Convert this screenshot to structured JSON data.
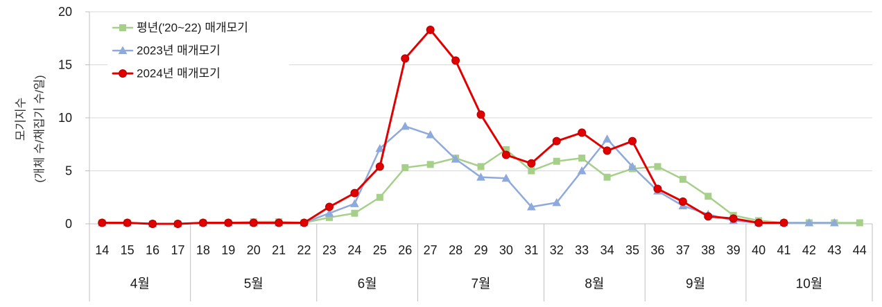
{
  "chart_data": {
    "type": "line",
    "categories": [
      "14",
      "15",
      "16",
      "17",
      "18",
      "19",
      "20",
      "21",
      "22",
      "23",
      "24",
      "25",
      "26",
      "27",
      "28",
      "29",
      "30",
      "31",
      "32",
      "33",
      "34",
      "35",
      "36",
      "37",
      "38",
      "39",
      "40",
      "41",
      "42",
      "43",
      "44"
    ],
    "groups": [
      {
        "label": "4월",
        "start": "14",
        "end": "17"
      },
      {
        "label": "5월",
        "start": "18",
        "end": "22"
      },
      {
        "label": "6월",
        "start": "23",
        "end": "26"
      },
      {
        "label": "7월",
        "start": "27",
        "end": "31"
      },
      {
        "label": "8월",
        "start": "32",
        "end": "35"
      },
      {
        "label": "9월",
        "start": "36",
        "end": "39"
      },
      {
        "label": "10월",
        "start": "40",
        "end": "44"
      }
    ],
    "series": [
      {
        "name": "평년('20~22) 매개모기",
        "color": "#A6D08A",
        "marker": "square",
        "values": [
          0.1,
          0.1,
          0.0,
          0.0,
          0.1,
          0.1,
          0.2,
          0.2,
          0.1,
          0.6,
          1.0,
          2.5,
          5.3,
          5.6,
          6.2,
          5.4,
          7.0,
          5.0,
          5.9,
          6.2,
          4.4,
          5.2,
          5.4,
          4.2,
          2.6,
          0.8,
          0.3,
          0.1,
          0.1,
          0.1,
          0.1
        ]
      },
      {
        "name": "2023년 매개모기",
        "color": "#8EA9DB",
        "marker": "triangle",
        "values": [
          0.1,
          0.1,
          0.0,
          0.0,
          0.1,
          0.1,
          0.1,
          0.1,
          0.1,
          1.0,
          1.9,
          7.1,
          9.2,
          8.4,
          6.1,
          4.4,
          4.3,
          1.6,
          2.0,
          5.0,
          8.0,
          5.4,
          3.1,
          1.7,
          0.9,
          0.3,
          0.1,
          0.1,
          0.1,
          0.1,
          null
        ]
      },
      {
        "name": "2024년 매개모기",
        "color": "#E00000",
        "marker": "circle",
        "values": [
          0.1,
          0.1,
          0.0,
          0.0,
          0.1,
          0.1,
          0.1,
          0.1,
          0.1,
          1.6,
          2.9,
          5.4,
          15.6,
          18.3,
          15.4,
          10.3,
          6.5,
          5.7,
          7.8,
          8.6,
          6.9,
          7.8,
          3.3,
          2.1,
          0.7,
          0.5,
          0.1,
          0.1,
          null,
          null,
          null
        ]
      }
    ],
    "ylabel": "모기지수",
    "ylabel_unit": "(개체 수/채집기 수/일)",
    "ylim": [
      0,
      20
    ],
    "yticks": [
      0,
      5,
      10,
      15,
      20
    ],
    "grid": "horizontal",
    "legend": "top-left"
  }
}
